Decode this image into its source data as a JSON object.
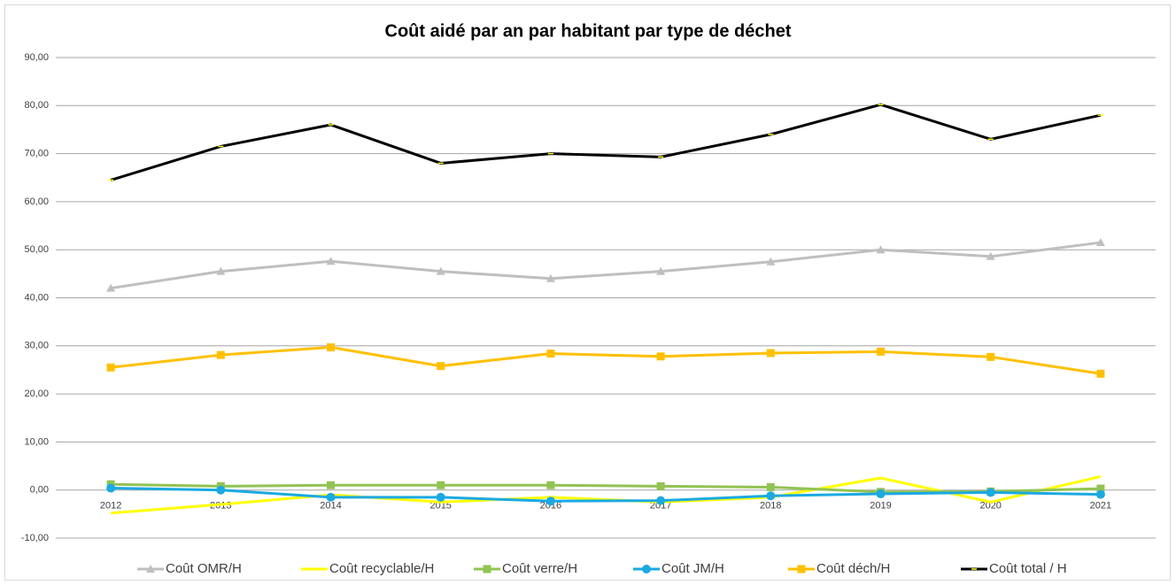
{
  "chart_data": {
    "type": "line",
    "title": "Coût aidé par an par habitant par type de déchet",
    "categories": [
      "2012",
      "2013",
      "2014",
      "2015",
      "2016",
      "2017",
      "2018",
      "2019",
      "2020",
      "2021"
    ],
    "ylim": [
      -10,
      90
    ],
    "yticks": [
      {
        "value": -10,
        "label": "-10,00"
      },
      {
        "value": 0,
        "label": "0,00"
      },
      {
        "value": 10,
        "label": "10,00"
      },
      {
        "value": 20,
        "label": "20,00"
      },
      {
        "value": 30,
        "label": "30,00"
      },
      {
        "value": 40,
        "label": "40,00"
      },
      {
        "value": 50,
        "label": "50,00"
      },
      {
        "value": 60,
        "label": "60,00"
      },
      {
        "value": 70,
        "label": "70,00"
      },
      {
        "value": 80,
        "label": "80,00"
      },
      {
        "value": 90,
        "label": "90,00"
      }
    ],
    "grid": true,
    "legend": "bottom",
    "series": [
      {
        "name": "Coût OMR/H",
        "color": "#bfbfbf",
        "marker": "triangle",
        "values": [
          42,
          45.5,
          47.6,
          45.5,
          44,
          45.5,
          47.5,
          50,
          48.6,
          51.5
        ]
      },
      {
        "name": "Coût recyclable/H",
        "color": "#ffff00",
        "marker": "none",
        "values": [
          -4.8,
          -3,
          -1,
          -2.5,
          -1.5,
          -2.5,
          -1.5,
          2.5,
          -2.5,
          2.8
        ]
      },
      {
        "name": "Coût verre/H",
        "color": "#92c353",
        "marker": "square",
        "values": [
          1.2,
          0.8,
          1,
          1,
          1,
          0.8,
          0.6,
          -0.4,
          -0.3,
          0.3
        ]
      },
      {
        "name": "Coût JM/H",
        "color": "#1ba9e1",
        "marker": "circle",
        "values": [
          0.4,
          0,
          -1.5,
          -1.5,
          -2.3,
          -2.2,
          -1.2,
          -0.8,
          -0.5,
          -0.9
        ]
      },
      {
        "name": "Coût déch/H",
        "color": "#ffc000",
        "marker": "square",
        "values": [
          25.5,
          28.1,
          29.7,
          25.8,
          28.4,
          27.8,
          28.5,
          28.8,
          27.7,
          24.2
        ]
      },
      {
        "name": "Coût total / H",
        "color": "#000000",
        "marker": "dash",
        "values": [
          64.5,
          71.5,
          76,
          68,
          70,
          69.3,
          74,
          80.2,
          73,
          78
        ]
      }
    ]
  }
}
